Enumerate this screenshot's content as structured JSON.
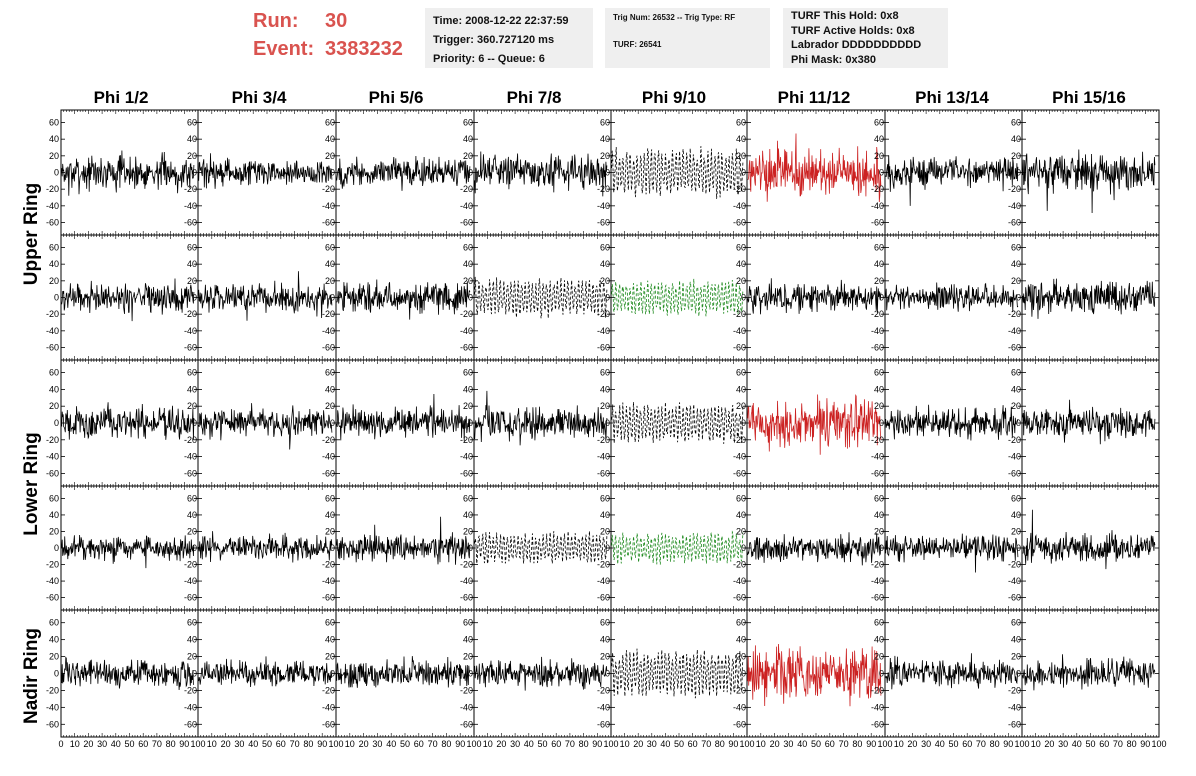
{
  "header": {
    "run_label": "Run:",
    "run_value": "30",
    "event_label": "Event:",
    "event_value": "3383232"
  },
  "info_boxes": {
    "time": {
      "line1": "Time: 2008-12-22 22:37:59",
      "line2": "Trigger: 360.727120 ms",
      "line3": "Priority: 6 -- Queue: 6"
    },
    "trig": {
      "line1": "Trig Num: 26532 -- Trig Type: RF",
      "line2": "TURF: 26541"
    },
    "turf": {
      "line1": "TURF This Hold: 0x8",
      "line2": "TURF Active Holds: 0x8",
      "line3": "Labrador DDDDDDDDDD",
      "line4": "Phi Mask: 0x380"
    }
  },
  "columns": [
    "Phi 1/2",
    "Phi 3/4",
    "Phi 5/6",
    "Phi 7/8",
    "Phi 9/10",
    "Phi 11/12",
    "Phi 13/14",
    "Phi 15/16"
  ],
  "row_labels": [
    {
      "label": "Upper Ring",
      "rows": [
        0,
        1
      ]
    },
    {
      "label": "Lower Ring",
      "rows": [
        2,
        3
      ]
    },
    {
      "label": "Nadir Ring",
      "rows": [
        4
      ]
    }
  ],
  "colors": {
    "red_text": "#d9534f",
    "trace_black": "#000000",
    "trace_red": "#cc2222",
    "trace_green": "#1f8a1f"
  },
  "chart_data": {
    "type": "line",
    "xlim": [
      0,
      100
    ],
    "ylim": [
      -75,
      75
    ],
    "x_ticks": [
      0,
      10,
      20,
      30,
      40,
      50,
      60,
      70,
      80,
      90,
      100
    ],
    "y_ticks": [
      -60,
      -40,
      -20,
      0,
      20,
      40,
      60
    ],
    "x_tick_labels": [
      "0",
      "10",
      "20",
      "30",
      "40",
      "50",
      "60",
      "70",
      "80",
      "90",
      "100"
    ],
    "y_tick_labels": [
      "-60",
      "-40",
      "-20",
      "0",
      "20",
      "40",
      "60"
    ],
    "n_rows": 5,
    "n_cols": 8,
    "panel_styles": [
      [
        "solid-black",
        "solid-black",
        "solid-black",
        "solid-black",
        "dashed-black",
        "solid-red",
        "solid-black",
        "solid-black"
      ],
      [
        "solid-black",
        "solid-black",
        "solid-black",
        "dashed-black",
        "dashed-green",
        "solid-black",
        "solid-black",
        "solid-black"
      ],
      [
        "solid-black",
        "solid-black",
        "solid-black",
        "solid-black",
        "dashed-black",
        "solid-red",
        "solid-black",
        "solid-black"
      ],
      [
        "solid-black",
        "solid-black",
        "solid-black",
        "dashed-black",
        "dashed-green",
        "solid-black",
        "solid-black",
        "solid-black"
      ],
      [
        "solid-black",
        "solid-black",
        "solid-black",
        "solid-black",
        "dashed-black",
        "solid-red",
        "solid-black",
        "solid-black"
      ]
    ],
    "panel_amplitudes": [
      [
        14,
        11,
        12,
        14,
        28,
        20,
        12,
        16
      ],
      [
        12,
        11,
        13,
        22,
        20,
        12,
        11,
        13
      ],
      [
        13,
        12,
        12,
        14,
        22,
        20,
        12,
        13
      ],
      [
        10,
        10,
        11,
        18,
        18,
        11,
        10,
        12
      ],
      [
        11,
        10,
        11,
        12,
        26,
        22,
        11,
        11
      ]
    ]
  }
}
